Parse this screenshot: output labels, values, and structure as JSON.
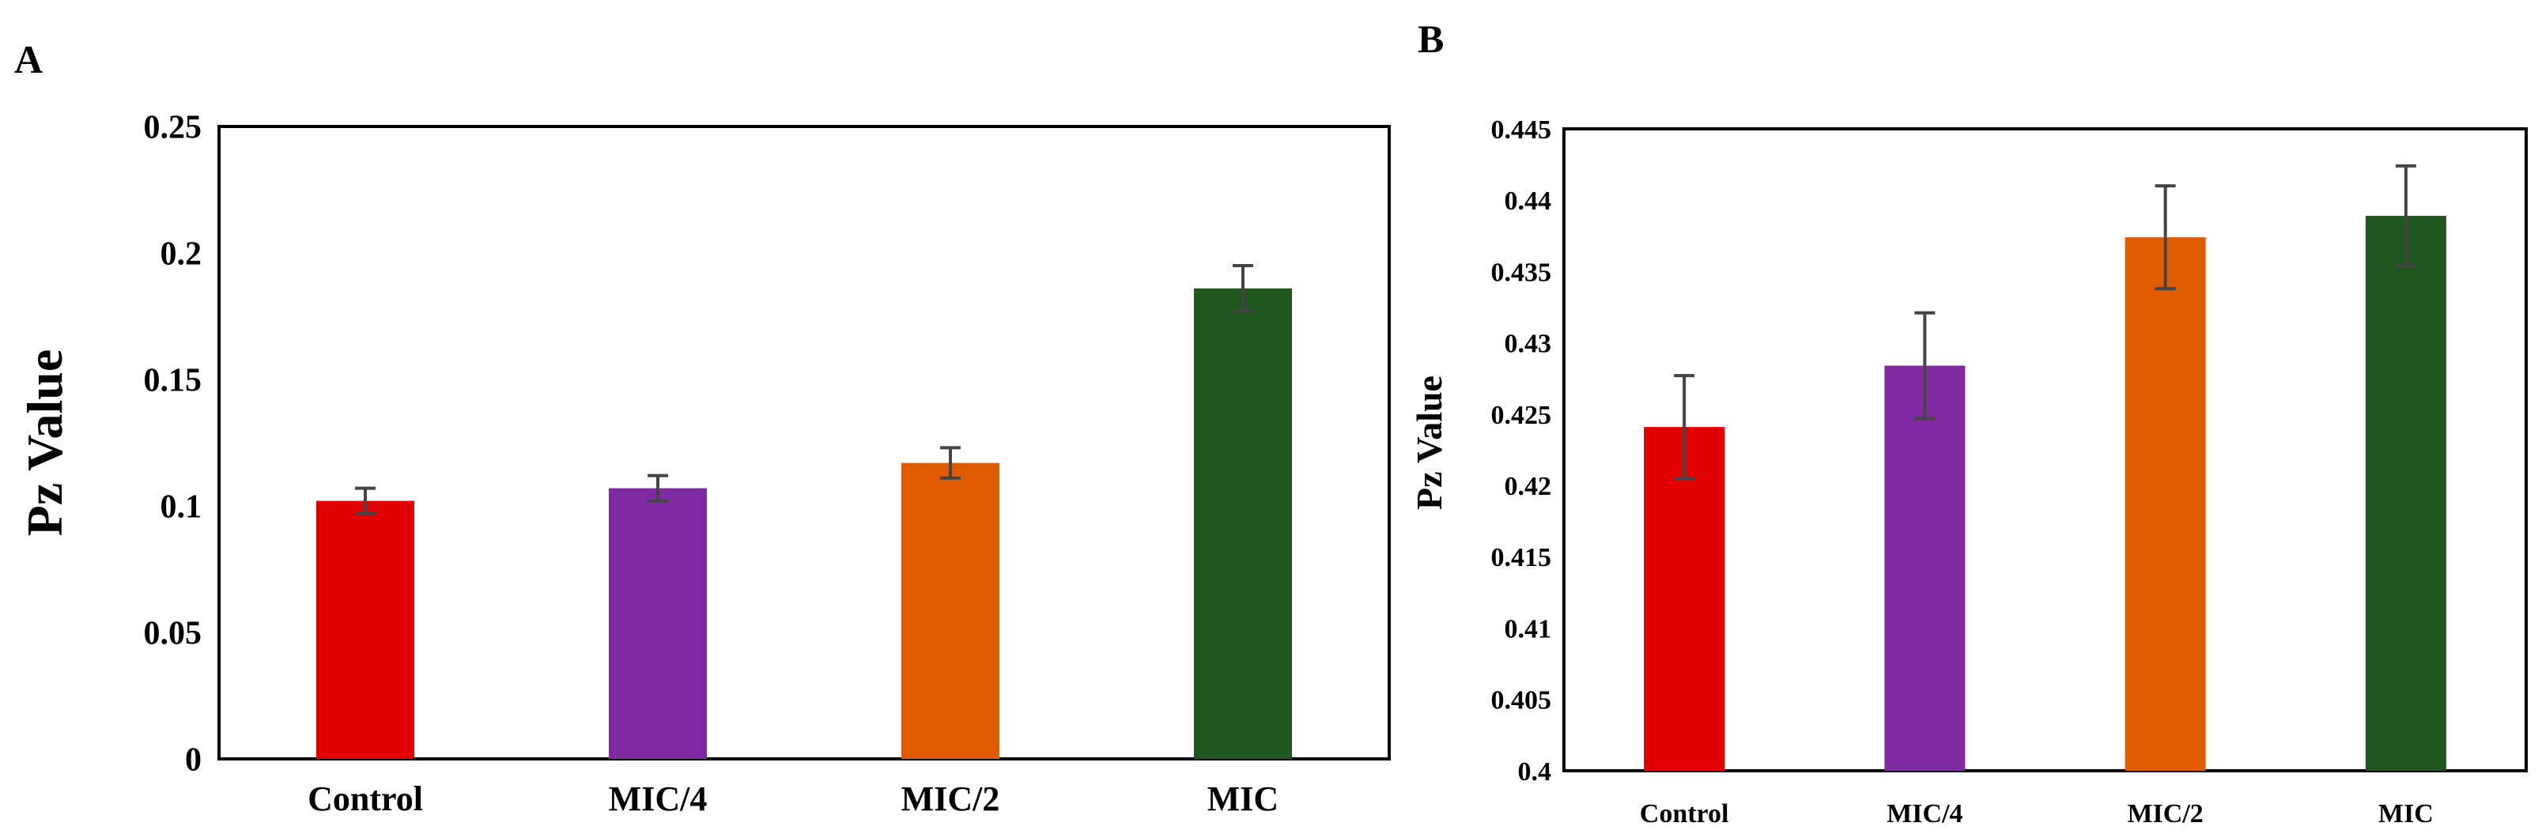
{
  "chart_data": [
    {
      "panel": "A",
      "type": "bar",
      "title": "",
      "xlabel": "",
      "ylabel": "Pz Value",
      "categories": [
        "Control",
        "MIC/4",
        "MIC/2",
        "MIC"
      ],
      "values": [
        0.102,
        0.107,
        0.117,
        0.186
      ],
      "errors": [
        0.005,
        0.005,
        0.006,
        0.009
      ],
      "colors": [
        "#e00000",
        "#7f2aa3",
        "#e05a00",
        "#1e561e"
      ],
      "ylim": [
        0,
        0.25
      ],
      "yticks": [
        "0",
        "0.05",
        "0.1",
        "0.15",
        "0.2",
        "0.25"
      ],
      "grid": false,
      "legend": "none"
    },
    {
      "panel": "B",
      "type": "bar",
      "title": "",
      "xlabel": "",
      "ylabel": "Pz Value",
      "categories": [
        "Control",
        "MIC/4",
        "MIC/2",
        "MIC"
      ],
      "values": [
        0.4241,
        0.4284,
        0.4374,
        0.4389
      ],
      "errors": [
        0.0036,
        0.0037,
        0.0036,
        0.0035
      ],
      "colors": [
        "#e00000",
        "#7f2aa3",
        "#e05a00",
        "#1e561e"
      ],
      "ylim": [
        0.4,
        0.445
      ],
      "yticks": [
        "0.4",
        "0.405",
        "0.41",
        "0.415",
        "0.42",
        "0.425",
        "0.43",
        "0.435",
        "0.44",
        "0.445"
      ],
      "grid": false,
      "legend": "none"
    }
  ]
}
